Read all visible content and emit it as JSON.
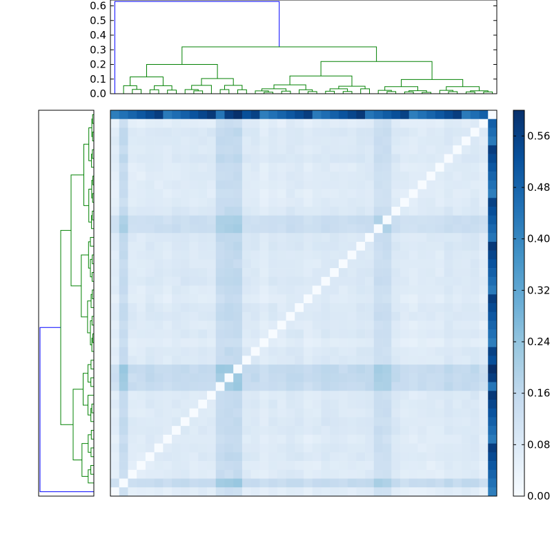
{
  "chart_data": {
    "type": "heatmap",
    "title": "",
    "description_of_layout": "clustered heatmap with top and left dendrograms and a colorbar",
    "n": 44,
    "colormap": "Blues",
    "grid": false,
    "top_dendrogram": {
      "yticks": [
        "0.0",
        "0.1",
        "0.2",
        "0.3",
        "0.4",
        "0.5",
        "0.6"
      ],
      "ylim": [
        0,
        0.64
      ],
      "root_height": 0.63,
      "main_split_height": 0.32,
      "cluster_colors": [
        "#0000ff",
        "#008000"
      ]
    },
    "colorbar": {
      "ticks": [
        "0.00",
        "0.08",
        "0.16",
        "0.24",
        "0.32",
        "0.40",
        "0.48",
        "0.56"
      ],
      "range": [
        0,
        0.6
      ]
    },
    "matrix_summary": {
      "diagonal": 0.0,
      "outlier_index": 43,
      "outlier_distance_range": [
        0.4,
        0.6
      ],
      "background_range": [
        0.02,
        0.12
      ],
      "elevated_rows": [
        1,
        12,
        30,
        31,
        44
      ],
      "elevated_cols": [
        13,
        14,
        43
      ]
    }
  }
}
